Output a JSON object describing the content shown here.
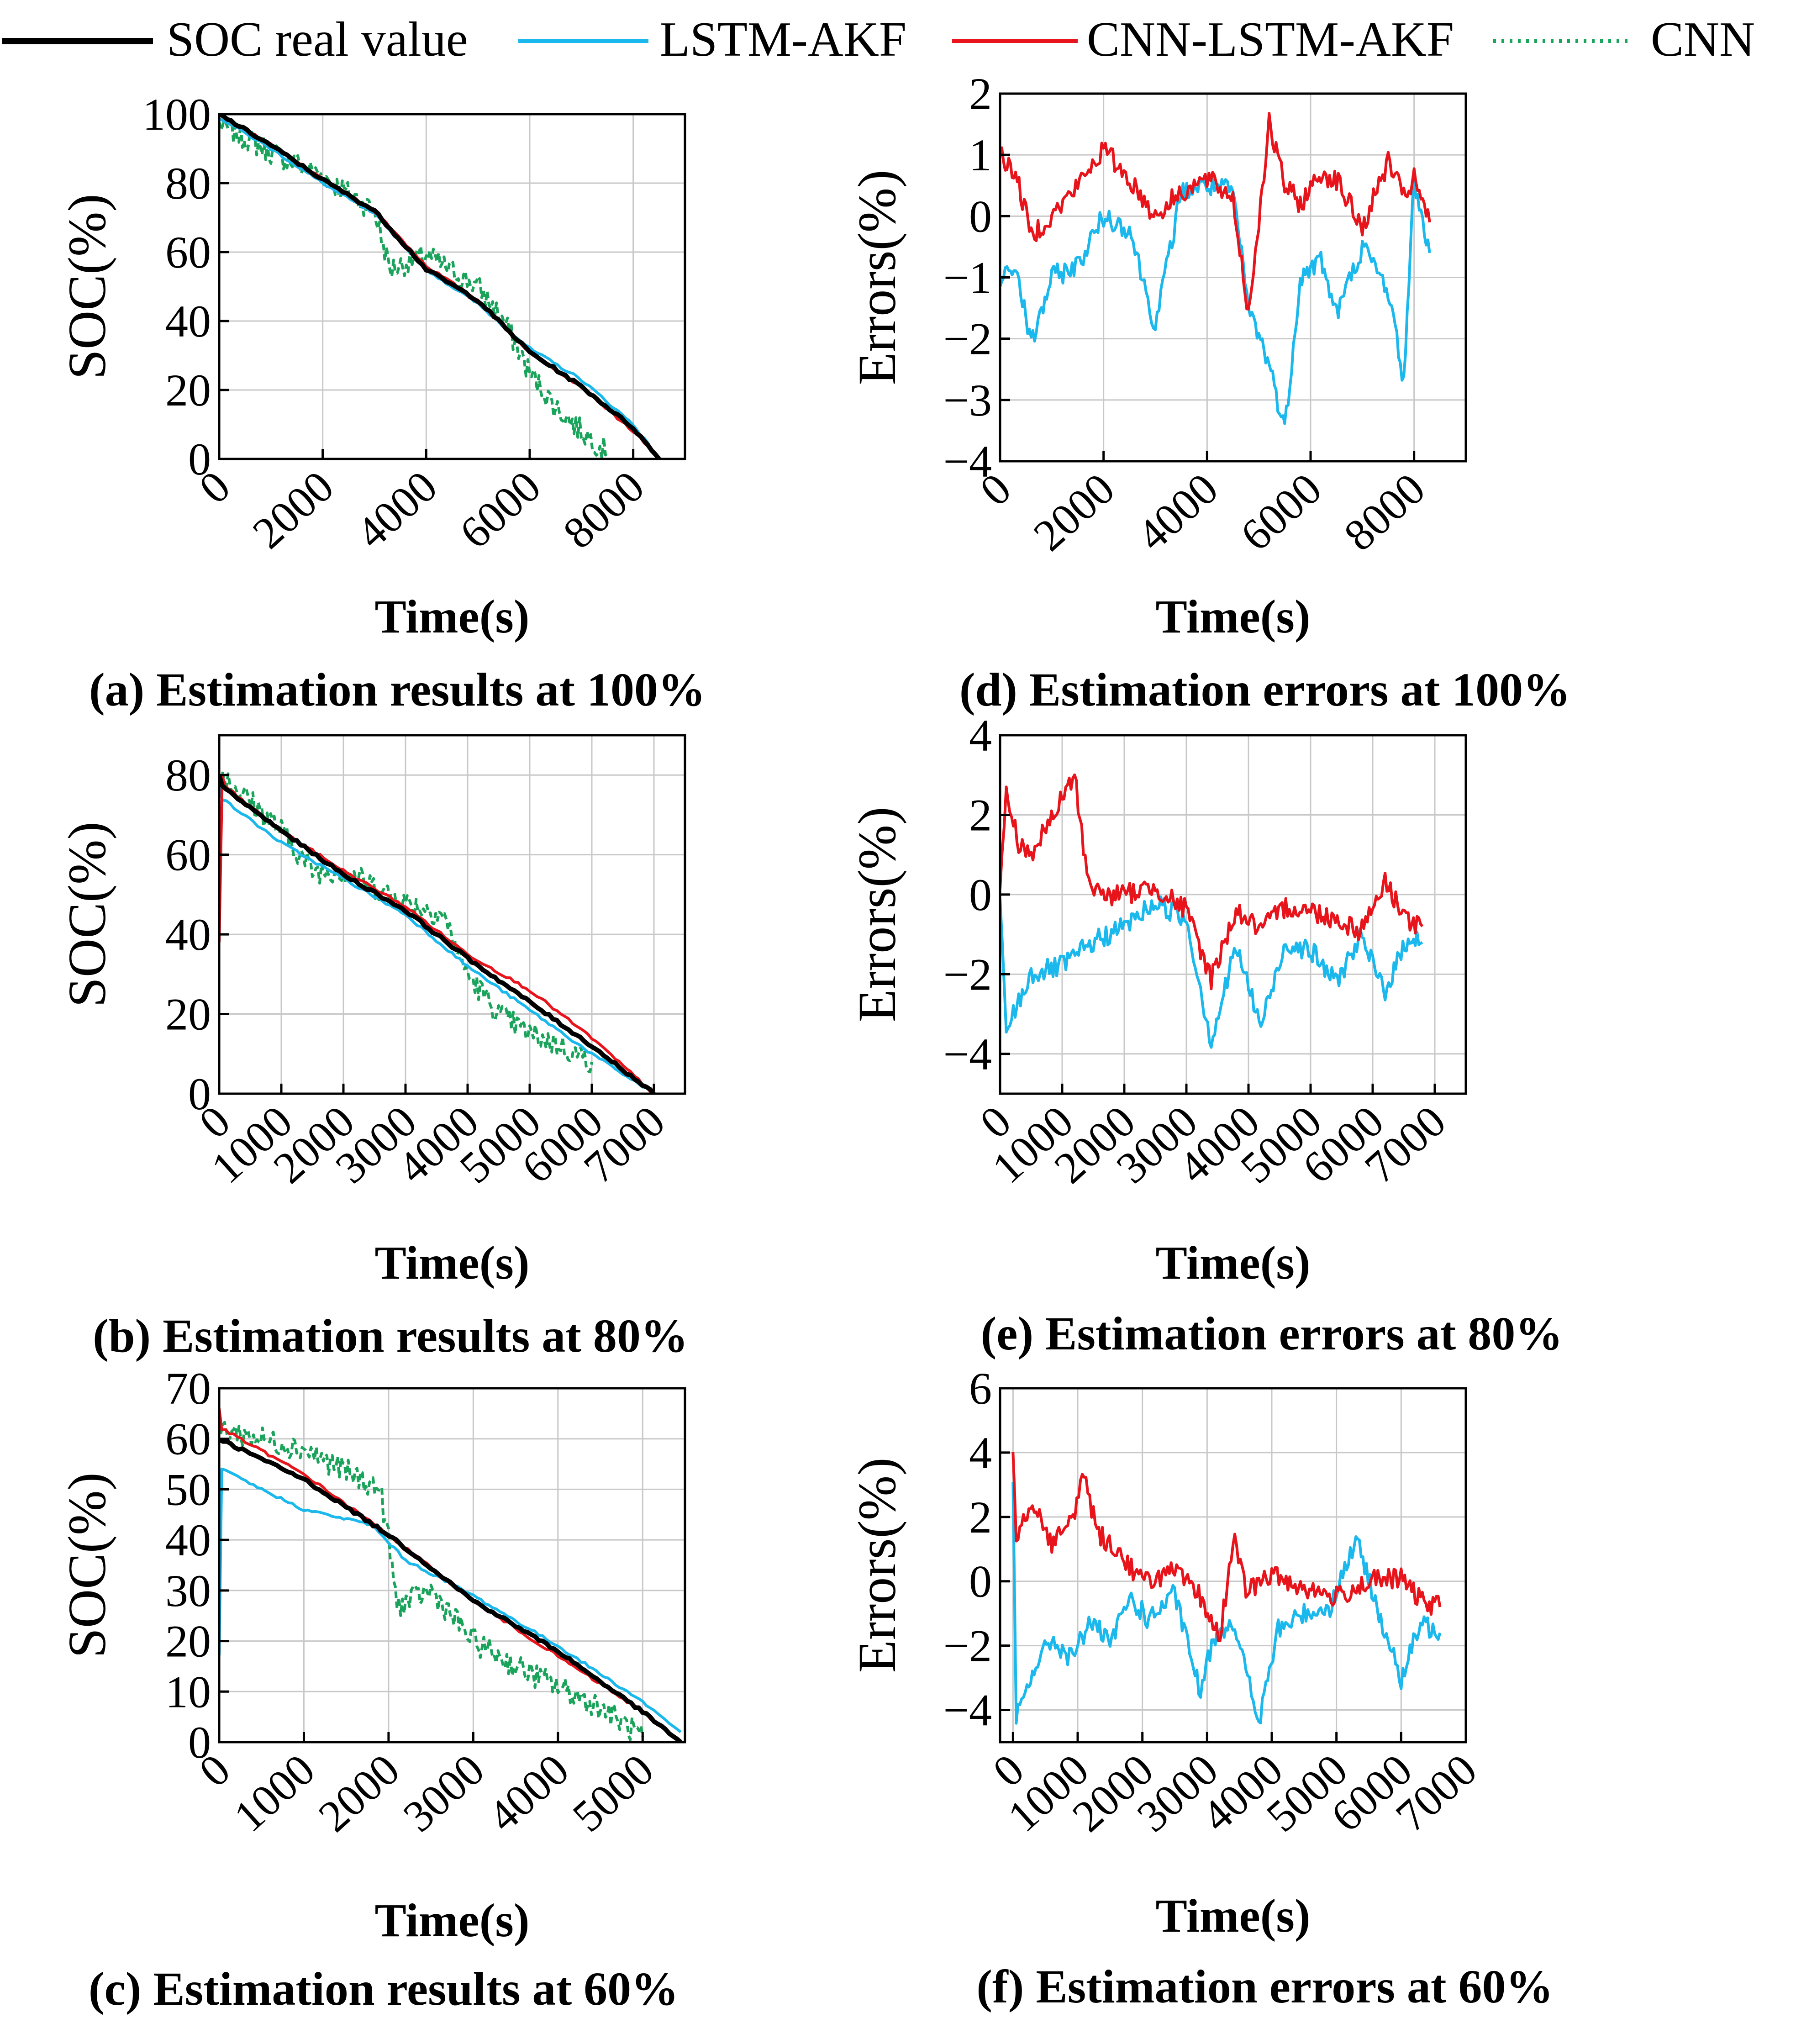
{
  "legend": [
    {
      "name": "SOC real value",
      "color": "#000000",
      "style": "solid-thick"
    },
    {
      "name": "LSTM-AKF",
      "color": "#1ab8ec",
      "style": "solid"
    },
    {
      "name": "CNN-LSTM-AKF",
      "color": "#e8141b",
      "style": "solid"
    },
    {
      "name": "CNN",
      "color": "#1aa35a",
      "style": "dotted"
    }
  ],
  "colors": {
    "real": "#000000",
    "lstm": "#1ab8ec",
    "cnnlstm": "#e8141b",
    "cnn": "#1aa35a",
    "grid": "#c8c8c8"
  },
  "chart_data": [
    {
      "id": "a",
      "type": "line",
      "caption": "(a) Estimation results at 100%",
      "xlabel": "Time(s)",
      "ylabel": "SOC(%)",
      "xlim": [
        0,
        9000
      ],
      "ylim": [
        0,
        100
      ],
      "xticks": [
        "0",
        "2000",
        "4000",
        "6000",
        "8000"
      ],
      "yticks": [
        "0",
        "20",
        "40",
        "60",
        "80",
        "100"
      ],
      "xtick_values": [
        0,
        2000,
        4000,
        6000,
        8000
      ],
      "ytick_values": [
        0,
        20,
        40,
        60,
        80,
        100
      ],
      "series": [
        {
          "name": "SOC real value",
          "x": [
            0,
            1000,
            2000,
            3000,
            4000,
            5000,
            6000,
            7000,
            8000,
            8500
          ],
          "y": [
            100,
            91,
            81,
            72,
            55,
            46,
            31,
            21,
            9,
            0
          ]
        },
        {
          "name": "LSTM-AKF",
          "x": [
            0,
            1000,
            2000,
            3000,
            4000,
            5000,
            6000,
            7000,
            8000,
            8500
          ],
          "y": [
            99,
            90,
            80,
            71,
            55,
            45,
            32,
            23,
            10,
            0
          ]
        },
        {
          "name": "CNN-LSTM-AKF",
          "x": [
            0,
            1000,
            2000,
            3000,
            4000,
            5000,
            6000,
            7000,
            8000,
            8500
          ],
          "y": [
            100,
            91,
            81,
            72,
            56,
            46,
            31,
            21,
            8,
            0
          ]
        },
        {
          "name": "CNN",
          "x": [
            0,
            1000,
            2000,
            3000,
            3300,
            4000,
            5000,
            5500,
            6000,
            6500,
            7000,
            7500
          ],
          "y": [
            97,
            89,
            82,
            72,
            55,
            59,
            50,
            40,
            25,
            15,
            8,
            2
          ]
        }
      ]
    },
    {
      "id": "b",
      "type": "line",
      "caption": "(b) Estimation results at 80%",
      "xlabel": "Time(s)",
      "ylabel": "SOC(%)",
      "xlim": [
        0,
        7500
      ],
      "ylim": [
        0,
        90
      ],
      "xticks": [
        "0",
        "1000",
        "2000",
        "3000",
        "4000",
        "5000",
        "6000",
        "7000"
      ],
      "yticks": [
        "0",
        "20",
        "40",
        "60",
        "80"
      ],
      "xtick_values": [
        0,
        1000,
        2000,
        3000,
        4000,
        5000,
        6000,
        7000
      ],
      "ytick_values": [
        0,
        20,
        40,
        60,
        80
      ],
      "series": [
        {
          "name": "SOC real value",
          "x": [
            0,
            50,
            1000,
            2000,
            3000,
            4000,
            5000,
            6000,
            7000
          ],
          "y": [
            80,
            77,
            66,
            55,
            46,
            34,
            23,
            12,
            0
          ]
        },
        {
          "name": "LSTM-AKF",
          "x": [
            0,
            50,
            1000,
            2000,
            3000,
            4000,
            5000,
            6000,
            7000
          ],
          "y": [
            78,
            74,
            63,
            54,
            45,
            32,
            21,
            10,
            0
          ]
        },
        {
          "name": "CNN-LSTM-AKF",
          "x": [
            0,
            50,
            100,
            1000,
            2000,
            3000,
            4000,
            5000,
            6000,
            7000
          ],
          "y": [
            38,
            80,
            77,
            66,
            56,
            47,
            35,
            26,
            14,
            0
          ]
        },
        {
          "name": "CNN",
          "x": [
            0,
            1000,
            1500,
            2000,
            3000,
            3600,
            4000,
            4500,
            5000,
            5500,
            6000
          ],
          "y": [
            81,
            66,
            56,
            56,
            48,
            45,
            30,
            20,
            15,
            12,
            8
          ]
        }
      ]
    },
    {
      "id": "c",
      "type": "line",
      "caption": "(c) Estimation results at 60%",
      "xlabel": "Time(s)",
      "ylabel": "SOC(%)",
      "xlim": [
        0,
        5500
      ],
      "ylim": [
        0,
        70
      ],
      "xticks": [
        "0",
        "1000",
        "2000",
        "3000",
        "4000",
        "5000"
      ],
      "yticks": [
        "0",
        "10",
        "20",
        "30",
        "40",
        "50",
        "60",
        "70"
      ],
      "xtick_values": [
        0,
        1000,
        2000,
        3000,
        4000,
        5000
      ],
      "ytick_values": [
        0,
        10,
        20,
        30,
        40,
        50,
        60,
        70
      ],
      "series": [
        {
          "name": "SOC real value",
          "x": [
            0,
            1000,
            2000,
            3000,
            4000,
            5000,
            5450
          ],
          "y": [
            60,
            52,
            41,
            28,
            18,
            6,
            0
          ]
        },
        {
          "name": "LSTM-AKF",
          "x": [
            0,
            30,
            500,
            1000,
            1800,
            2200,
            3000,
            4000,
            5000,
            5450
          ],
          "y": [
            17,
            54,
            50,
            46,
            43,
            36,
            29,
            19,
            8,
            2
          ]
        },
        {
          "name": "CNN-LSTM-AKF",
          "x": [
            0,
            30,
            1000,
            2000,
            3000,
            4000,
            5000,
            5450
          ],
          "y": [
            66,
            62,
            53,
            41,
            28,
            17,
            6,
            0
          ]
        },
        {
          "name": "CNN",
          "x": [
            0,
            1000,
            1900,
            2000,
            2100,
            2500,
            3000,
            3500,
            4000,
            4500,
            5000
          ],
          "y": [
            62,
            58,
            50,
            40,
            27,
            30,
            20,
            15,
            11,
            7,
            1
          ]
        }
      ]
    },
    {
      "id": "d",
      "type": "line",
      "caption": "(d) Estimation errors at 100%",
      "xlabel": "Time(s)",
      "ylabel": "Errors(%)",
      "xlim": [
        0,
        9000
      ],
      "ylim": [
        -4,
        2
      ],
      "xticks": [
        "0",
        "2000",
        "4000",
        "6000",
        "8000"
      ],
      "yticks": [
        "−4",
        "−3",
        "−2",
        "−1",
        "0",
        "1",
        "2"
      ],
      "xtick_values": [
        0,
        2000,
        4000,
        6000,
        8000
      ],
      "ytick_values": [
        -4,
        -3,
        -2,
        -1,
        0,
        1,
        2
      ],
      "series": [
        {
          "name": "LSTM-AKF",
          "x": [
            0,
            300,
            600,
            1000,
            1500,
            2000,
            2500,
            3000,
            3500,
            4000,
            4500,
            4800,
            5200,
            5500,
            5800,
            6200,
            6500,
            7000,
            7500,
            7800,
            8000,
            8300
          ],
          "y": [
            -1.1,
            -0.8,
            -2.1,
            -1.0,
            -0.8,
            0.0,
            -0.2,
            -1.8,
            0.4,
            0.5,
            0.4,
            -1.5,
            -2.4,
            -3.5,
            -1.0,
            -0.7,
            -1.6,
            -0.5,
            -1.2,
            -2.7,
            0.6,
            -0.6
          ]
        },
        {
          "name": "CNN-LSTM-AKF",
          "x": [
            0,
            300,
            600,
            1000,
            1500,
            2000,
            2500,
            3000,
            3500,
            4000,
            4500,
            4800,
            5200,
            5500,
            5800,
            6200,
            6500,
            7000,
            7500,
            7800,
            8000,
            8300
          ],
          "y": [
            1.0,
            0.7,
            -0.3,
            0.0,
            0.5,
            1.1,
            0.6,
            0.0,
            0.4,
            0.6,
            0.3,
            -1.6,
            1.5,
            0.5,
            0.2,
            0.7,
            0.6,
            -0.2,
            0.9,
            0.3,
            0.6,
            -0.1
          ]
        }
      ]
    },
    {
      "id": "e",
      "type": "line",
      "caption": "(e) Estimation errors at 80%",
      "xlabel": "Time(s)",
      "ylabel": "Errors(%)",
      "xlim": [
        0,
        7500
      ],
      "ylim": [
        -5,
        4
      ],
      "xticks": [
        "0",
        "1000",
        "2000",
        "3000",
        "4000",
        "5000",
        "6000",
        "7000"
      ],
      "yticks": [
        "−4",
        "−2",
        "0",
        "2",
        "4"
      ],
      "xtick_values": [
        0,
        1000,
        2000,
        3000,
        4000,
        5000,
        6000,
        7000
      ],
      "ytick_values": [
        -4,
        -2,
        0,
        2,
        4
      ],
      "series": [
        {
          "name": "LSTM-AKF",
          "x": [
            0,
            100,
            500,
            1000,
            1500,
            2000,
            2500,
            3000,
            3400,
            3800,
            4200,
            4600,
            5000,
            5400,
            5800,
            6200,
            6600,
            6800
          ],
          "y": [
            -0.3,
            -3.4,
            -2.0,
            -1.8,
            -1.2,
            -0.8,
            -0.2,
            -0.6,
            -3.7,
            -1.3,
            -3.3,
            -1.2,
            -1.4,
            -2.2,
            -1.1,
            -2.4,
            -1.0,
            -1.2
          ]
        },
        {
          "name": "CNN-LSTM-AKF",
          "x": [
            0,
            100,
            300,
            500,
            800,
            1200,
            1400,
            1600,
            2000,
            2500,
            3000,
            3400,
            3800,
            4200,
            4600,
            5000,
            5400,
            5800,
            6200,
            6600,
            6800
          ],
          "y": [
            0.2,
            2.5,
            1.3,
            1.0,
            1.8,
            3.0,
            0.5,
            0.0,
            0.0,
            0.2,
            -0.4,
            -2.1,
            -0.4,
            -0.9,
            -0.3,
            -0.4,
            -0.6,
            -0.9,
            0.3,
            -0.7,
            -0.8
          ]
        }
      ]
    },
    {
      "id": "f",
      "type": "line",
      "caption": "(f) Estimation errors at 60%",
      "xlabel": "Time(s)",
      "ylabel": "Errors(%)",
      "xlim": [
        -200,
        7000
      ],
      "ylim": [
        -5,
        6
      ],
      "xticks": [
        "0",
        "1000",
        "2000",
        "3000",
        "4000",
        "5000",
        "6000",
        "7000"
      ],
      "yticks": [
        "−4",
        "−2",
        "0",
        "2",
        "4",
        "6"
      ],
      "xtick_values": [
        0,
        1000,
        2000,
        3000,
        4000,
        5000,
        6000,
        7000
      ],
      "ytick_values": [
        -4,
        -2,
        0,
        2,
        4,
        6
      ],
      "series": [
        {
          "name": "LSTM-AKF",
          "x": [
            0,
            50,
            300,
            600,
            900,
            1200,
            1500,
            1800,
            2100,
            2500,
            2900,
            3100,
            3400,
            3800,
            4100,
            4500,
            4900,
            5300,
            5600,
            6000,
            6300,
            6600
          ],
          "y": [
            2.8,
            -4.3,
            -2.8,
            -1.8,
            -2.4,
            -1.2,
            -2.0,
            -0.5,
            -1.2,
            -0.4,
            -3.5,
            -1.7,
            -1.2,
            -4.4,
            -1.5,
            -1.0,
            -0.8,
            1.3,
            -0.6,
            -3.1,
            -1.3,
            -1.6
          ]
        },
        {
          "name": "CNN-LSTM-AKF",
          "x": [
            0,
            50,
            300,
            600,
            900,
            1100,
            1300,
            1600,
            2000,
            2500,
            2900,
            3200,
            3400,
            3600,
            4000,
            4500,
            5000,
            5500,
            6000,
            6300,
            6600
          ],
          "y": [
            4.3,
            1.5,
            2.5,
            1.2,
            1.8,
            3.4,
            1.5,
            1.0,
            0.0,
            0.3,
            -0.5,
            -1.8,
            1.4,
            -0.3,
            0.2,
            -0.2,
            -0.5,
            0.0,
            0.1,
            -0.6,
            -0.8
          ]
        }
      ]
    }
  ]
}
